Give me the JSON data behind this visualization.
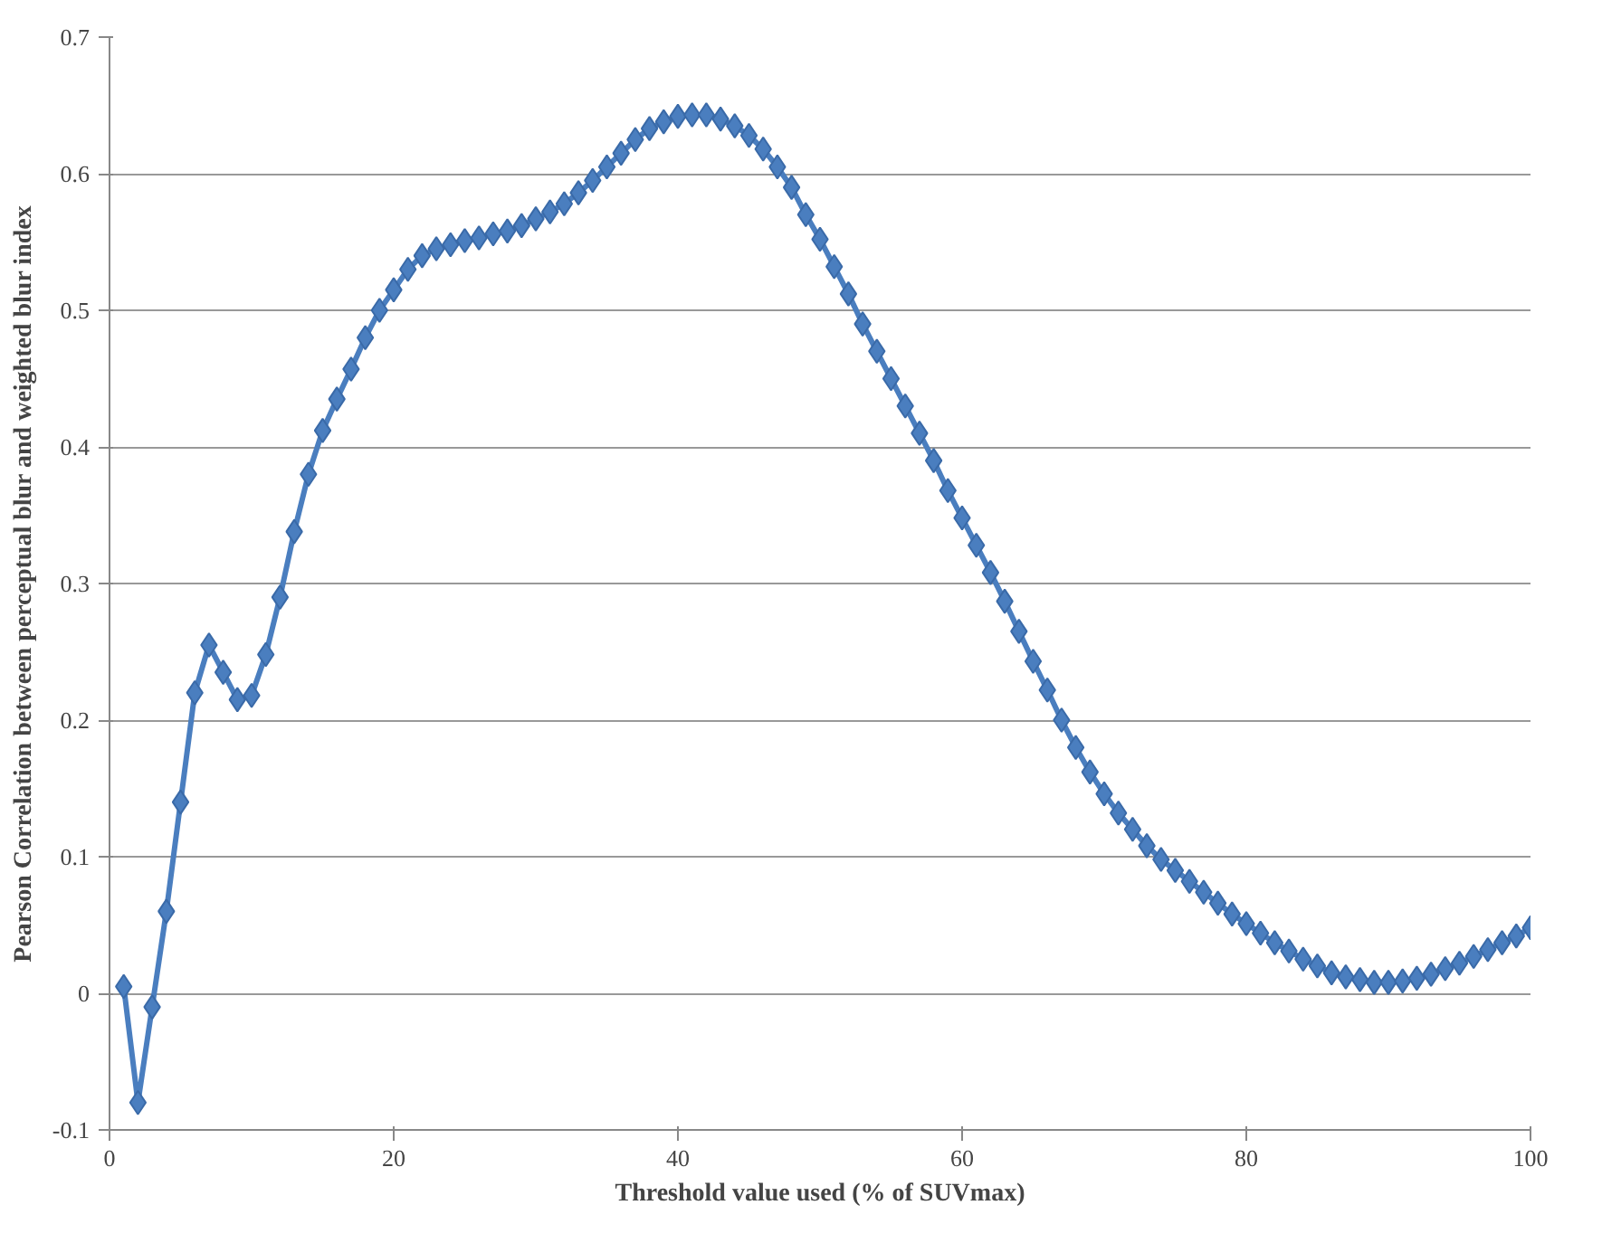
{
  "chart_data": {
    "type": "line",
    "xlabel": "Threshold value used (% of SUVmax)",
    "ylabel": "Pearson Correlation between perceptual blur and weighted blur index",
    "x": [
      1,
      2,
      3,
      4,
      5,
      6,
      7,
      8,
      9,
      10,
      11,
      12,
      13,
      14,
      15,
      16,
      17,
      18,
      19,
      20,
      21,
      22,
      23,
      24,
      25,
      26,
      27,
      28,
      29,
      30,
      31,
      32,
      33,
      34,
      35,
      36,
      37,
      38,
      39,
      40,
      41,
      42,
      43,
      44,
      45,
      46,
      47,
      48,
      49,
      50,
      51,
      52,
      53,
      54,
      55,
      56,
      57,
      58,
      59,
      60,
      61,
      62,
      63,
      64,
      65,
      66,
      67,
      68,
      69,
      70,
      71,
      72,
      73,
      74,
      75,
      76,
      77,
      78,
      79,
      80,
      81,
      82,
      83,
      84,
      85,
      86,
      87,
      88,
      89,
      90,
      91,
      92,
      93,
      94,
      95,
      96,
      97,
      98,
      99,
      100
    ],
    "series": [
      {
        "color": "#4a7ebf",
        "values": [
          0.005,
          -0.08,
          -0.01,
          0.06,
          0.14,
          0.22,
          0.255,
          0.235,
          0.215,
          0.218,
          0.248,
          0.29,
          0.338,
          0.38,
          0.412,
          0.435,
          0.457,
          0.48,
          0.5,
          0.515,
          0.53,
          0.54,
          0.545,
          0.548,
          0.551,
          0.553,
          0.556,
          0.558,
          0.562,
          0.567,
          0.572,
          0.578,
          0.586,
          0.595,
          0.605,
          0.615,
          0.625,
          0.633,
          0.638,
          0.642,
          0.643,
          0.643,
          0.64,
          0.635,
          0.628,
          0.618,
          0.605,
          0.59,
          0.57,
          0.552,
          0.532,
          0.512,
          0.49,
          0.47,
          0.45,
          0.43,
          0.41,
          0.39,
          0.368,
          0.348,
          0.328,
          0.308,
          0.287,
          0.265,
          0.243,
          0.222,
          0.2,
          0.18,
          0.162,
          0.146,
          0.132,
          0.12,
          0.108,
          0.098,
          0.09,
          0.082,
          0.074,
          0.066,
          0.058,
          0.051,
          0.044,
          0.037,
          0.031,
          0.025,
          0.02,
          0.015,
          0.012,
          0.01,
          0.008,
          0.008,
          0.009,
          0.011,
          0.014,
          0.018,
          0.022,
          0.027,
          0.032,
          0.037,
          0.042,
          0.048
        ]
      }
    ],
    "xlim": [
      0,
      100
    ],
    "xticks": [
      0,
      20,
      40,
      60,
      80,
      100
    ],
    "ylim": [
      -0.1,
      0.7
    ],
    "yticks": [
      -0.1,
      0,
      0.1,
      0.2,
      0.3,
      0.4,
      0.5,
      0.6,
      0.7
    ],
    "grid": "y",
    "marker": "diamond",
    "line_style": "solid"
  }
}
